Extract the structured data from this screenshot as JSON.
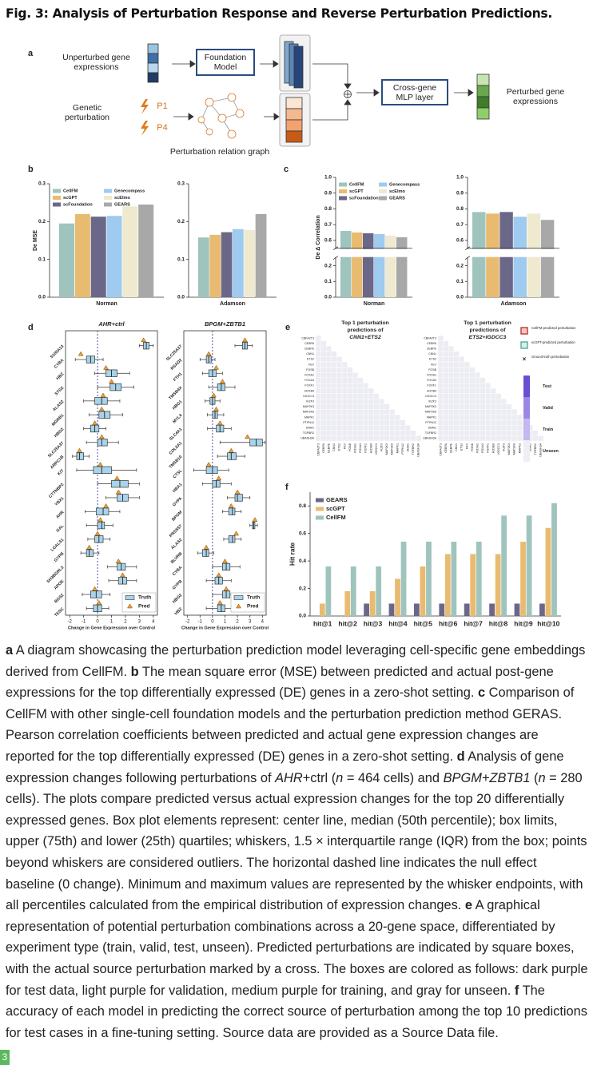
{
  "title": "Fig. 3: Analysis of Perturbation Response and Reverse Perturbation Predictions.",
  "panels": [
    "a",
    "b",
    "c",
    "d",
    "e",
    "f"
  ],
  "diagram": {
    "input": "Unperturbed gene expressions",
    "model": "Foundation Model",
    "perturbation": "Genetic perturbation",
    "p1": "P1",
    "p4": "P4",
    "graph": "Perturbation relation graph",
    "mlp": "Cross-gene MLP layer",
    "output": "Perturbed gene expressions"
  },
  "chart_data": [
    {
      "type": "bar",
      "ylabel": "De MSE",
      "categories": [
        "Norman",
        "Adamson"
      ],
      "ylim": [
        0,
        0.3
      ],
      "yticks": [
        {
          "value": 0,
          "label": "0.0"
        },
        0.1,
        0.2,
        0.3
      ],
      "series": [
        {
          "name": "CellFM",
          "color": "#9fc4bd",
          "values": [
            0.195,
            0.158
          ]
        },
        {
          "name": "scGPT",
          "color": "#e9bb70",
          "values": [
            0.22,
            0.165
          ]
        },
        {
          "name": "scFoundation",
          "color": "#6b6789",
          "values": [
            0.213,
            0.172
          ]
        },
        {
          "name": "Genecompass",
          "color": "#9ecbef",
          "values": [
            0.215,
            0.18
          ]
        },
        {
          "name": "scElmo",
          "color": "#efe9cf",
          "values": [
            0.24,
            0.178
          ]
        },
        {
          "name": "GEARS",
          "color": "#a8a8a8",
          "values": [
            0.245,
            0.22
          ]
        }
      ]
    },
    {
      "type": "bar",
      "ylabel": "De Δ Correlation",
      "categories": [
        "Norman",
        "Adamson"
      ],
      "ylim": [
        0,
        1.0
      ],
      "axis_break": [
        0.25,
        0.55
      ],
      "yticks": [
        {
          "value": 0,
          "label": "0.0"
        },
        0.1,
        0.2,
        0.6,
        0.7,
        0.8,
        0.9,
        {
          "value": 1,
          "label": "1.0"
        }
      ],
      "series": [
        {
          "name": "CellFM",
          "color": "#9fc4bd",
          "values": [
            0.66,
            0.78
          ]
        },
        {
          "name": "scGPT",
          "color": "#e9bb70",
          "values": [
            0.65,
            0.77
          ]
        },
        {
          "name": "scFoundation",
          "color": "#6b6789",
          "values": [
            0.645,
            0.78
          ]
        },
        {
          "name": "Genecompass",
          "color": "#9ecbef",
          "values": [
            0.64,
            0.75
          ]
        },
        {
          "name": "scElmo",
          "color": "#efe9cf",
          "values": [
            0.63,
            0.77
          ]
        },
        {
          "name": "GEARS",
          "color": "#a8a8a8",
          "values": [
            0.62,
            0.73
          ]
        }
      ]
    },
    {
      "type": "box",
      "title": "AHR+ctrl",
      "xlabel": "Change in Gene Expression over Control",
      "xlim": [
        -2.3,
        4.3
      ],
      "xticks": [
        -2,
        -1,
        0,
        1,
        2,
        3,
        4
      ],
      "categories": [
        "S100A13",
        "CYBA",
        "HBZ",
        "STG2",
        "ALAS2",
        "MGRB1",
        "HBG2",
        "SLC25A37",
        "ARPC1B",
        "KIT",
        "CTTNBP2",
        "YBX1",
        "AHR",
        "GAL",
        "LGALS1",
        "GYPB",
        "SH3BGRL3",
        "APOE",
        "RGS2",
        "TESC"
      ],
      "series": [
        {
          "name": "Truth",
          "color": "#a9d3ea",
          "q1": [
            3.3,
            -0.8,
            0.6,
            0.9,
            -0.2,
            0.1,
            -0.5,
            0.0,
            -1.5,
            -0.3,
            1.0,
            1.4,
            -0.1,
            0.0,
            -0.2,
            -0.8,
            1.4,
            1.5,
            -0.5,
            -0.3
          ],
          "median": [
            3.5,
            -0.5,
            1.0,
            1.3,
            0.3,
            0.5,
            -0.2,
            0.3,
            -1.3,
            0.3,
            1.6,
            1.8,
            0.4,
            0.3,
            0.1,
            -0.6,
            1.7,
            1.8,
            -0.1,
            0.0
          ],
          "q3": [
            3.7,
            -0.2,
            1.4,
            1.7,
            0.7,
            0.9,
            0.1,
            0.7,
            -1.0,
            1.0,
            2.2,
            2.2,
            0.8,
            0.5,
            0.4,
            -0.3,
            2.0,
            2.1,
            0.3,
            0.3
          ],
          "whislo": [
            3.0,
            -1.6,
            -0.2,
            0.0,
            -1.0,
            -0.6,
            -1.0,
            -0.8,
            -1.8,
            -1.5,
            0.0,
            0.6,
            -0.9,
            -0.8,
            -0.7,
            -1.2,
            0.7,
            0.8,
            -1.1,
            -0.8
          ],
          "whishi": [
            4.0,
            0.4,
            2.3,
            2.6,
            1.6,
            1.8,
            0.6,
            1.5,
            -0.6,
            2.8,
            3.0,
            3.0,
            1.6,
            1.1,
            0.9,
            0.1,
            2.8,
            2.8,
            0.9,
            0.8
          ]
        },
        {
          "name": "Pred",
          "color": "#f0a030",
          "values": [
            3.3,
            -1.2,
            0.6,
            1.0,
            0.4,
            0.3,
            -0.2,
            0.3,
            -1.3,
            0.2,
            1.4,
            1.5,
            0.6,
            0.2,
            0.0,
            -0.6,
            1.5,
            1.8,
            -0.2,
            0.1
          ]
        }
      ]
    },
    {
      "type": "box",
      "title": "BPGM+ZBTB1",
      "xlabel": "Change in Gene Expression over Control",
      "xlim": [
        -2.3,
        4.3
      ],
      "xticks": [
        -2,
        -1,
        0,
        1,
        2,
        3,
        4
      ],
      "categories": [
        "SLC25A37",
        "RSAD2",
        "FTH1",
        "TMSB4X",
        "HBG1",
        "MYL4",
        "SLC4A1",
        "COL6A1",
        "TMSB10",
        "CTSL",
        "HBA1",
        "GYPA",
        "BPGM",
        "PRSS57",
        "ALAS2",
        "BLVRB",
        "CYBA",
        "GYPB",
        "HBG2",
        "HBZ"
      ],
      "series": [
        {
          "name": "Truth",
          "color": "#a9d3ea",
          "q1": [
            2.4,
            -0.5,
            -0.3,
            0.4,
            -0.2,
            0.0,
            0.3,
            3.0,
            1.2,
            -0.5,
            0.0,
            1.8,
            1.3,
            3.2,
            1.3,
            -0.8,
            0.8,
            0.2,
            0.8,
            0.4
          ],
          "median": [
            2.6,
            -0.3,
            0.0,
            0.7,
            0.0,
            0.2,
            0.6,
            3.5,
            1.5,
            0.0,
            0.3,
            2.0,
            1.6,
            3.3,
            1.6,
            -0.5,
            1.1,
            0.5,
            1.1,
            0.7
          ],
          "q3": [
            2.8,
            -0.1,
            0.3,
            1.0,
            0.2,
            0.4,
            0.9,
            4.0,
            1.9,
            0.4,
            0.6,
            2.4,
            1.8,
            3.4,
            1.8,
            -0.3,
            1.4,
            0.8,
            1.4,
            1.0
          ],
          "whislo": [
            1.8,
            -1.0,
            -0.8,
            -0.3,
            -0.6,
            -0.4,
            -0.4,
            0.6,
            0.4,
            -1.5,
            -0.8,
            1.2,
            0.8,
            3.0,
            0.9,
            -1.2,
            0.0,
            -0.5,
            0.0,
            -0.5
          ],
          "whishi": [
            3.2,
            0.2,
            0.8,
            1.8,
            0.6,
            0.9,
            1.5,
            4.2,
            2.6,
            1.3,
            1.5,
            3.0,
            2.3,
            3.6,
            2.3,
            0.1,
            2.2,
            1.5,
            2.2,
            1.9
          ]
        },
        {
          "name": "Pred",
          "color": "#f0a030",
          "values": [
            2.6,
            -0.3,
            0.3,
            0.8,
            0.1,
            0.3,
            0.6,
            2.8,
            1.5,
            -0.3,
            0.5,
            2.0,
            1.5,
            3.4,
            1.9,
            -0.5,
            1.0,
            0.5,
            1.1,
            0.6
          ]
        }
      ]
    },
    {
      "type": "bar",
      "ylabel": "Hit rate",
      "categories": [
        "hit@1",
        "hit@2",
        "hit@3",
        "hit@4",
        "hit@5",
        "hit@6",
        "hit@7",
        "hit@8",
        "hit@9",
        "hit@10"
      ],
      "ylim": [
        0,
        0.9
      ],
      "yticks": [
        {
          "value": 0,
          "label": "0.0"
        },
        0.2,
        0.4,
        0.6,
        0.8
      ],
      "series": [
        {
          "name": "GEARS",
          "color": "#6b6789",
          "values": [
            0,
            0,
            0.09,
            0.09,
            0.09,
            0.09,
            0.09,
            0.09,
            0.09,
            0.09
          ]
        },
        {
          "name": "scGPT",
          "color": "#e9bb70",
          "values": [
            0.09,
            0.18,
            0.18,
            0.27,
            0.36,
            0.45,
            0.45,
            0.45,
            0.54,
            0.64
          ]
        },
        {
          "name": "CellFM",
          "color": "#9fc4bd",
          "values": [
            0.36,
            0.36,
            0.36,
            0.54,
            0.54,
            0.54,
            0.54,
            0.73,
            0.73,
            0.82
          ]
        }
      ]
    }
  ],
  "panel_e": {
    "titles": [
      [
        "Top 1 perturbation",
        "predictions of",
        "CNN1+ETS2"
      ],
      [
        "Top 1 perturbation",
        "predictions of",
        "ETS2+IGDCC3"
      ]
    ],
    "genes": [
      "CBFA2T3",
      "CEBPA",
      "CEBPE",
      "CNN1",
      "ETS2",
      "FEV",
      "FOSB",
      "FOXA1",
      "FOXA3",
      "FOXF1",
      "HOXB9",
      "IGDCC3",
      "IKZF3",
      "MAP2K3",
      "MAP2K6",
      "MAPK1",
      "PTPN12",
      "SNAI1",
      "TGFBR2",
      "UBASH3A"
    ],
    "markers": [
      "CellFM-predicted perturbation",
      "scGPT-predicted perturbation",
      "Ground-truth perturbation"
    ],
    "classes": [
      "Test",
      "Valid",
      "Train",
      "Unseen"
    ]
  },
  "caption": [
    "a",
    " A diagram showcasing the perturbation prediction model leveraging cell-specific gene embeddings derived from CellFM. ",
    "b",
    " The mean square error (MSE) between predicted and actual post-gene expressions for the top differentially expressed (DE) genes in a zero-shot setting. ",
    "c",
    " Comparison of CellFM with other single-cell foundation models and the perturbation prediction method GERAS. Pearson correlation coefficients between predicted and actual gene expression changes are reported for the top differentially expressed (DE) genes in a zero-shot setting. ",
    "d",
    " Analysis of gene expression changes following perturbations of ",
    "AHR",
    "+ctrl (",
    "n",
    " = 464 cells) and ",
    "BPGM+ZBTB1",
    " (",
    "n",
    " = 280 cells). The plots compare predicted versus actual expression changes for the top 20 differentially expressed genes. Box plot elements represent: center line, median (50th percentile); box limits, upper (75th) and lower (25th) quartiles; whiskers, 1.5 × interquartile range (IQR) from the box; points beyond whiskers are considered outliers. The horizontal dashed line indicates the null effect baseline (0 change). Minimum and maximum values are represented by the whisker endpoints, with all percentiles calculated from the empirical distribution of expression changes. ",
    "e",
    " A graphical representation of potential perturbation combinations across a 20-gene space, differentiated by experiment type (train, valid, test, unseen). Predicted perturbations are indicated by square boxes, with the actual source perturbation marked by a cross. The boxes are colored as follows: dark purple for test data, light purple for validation, medium purple for training, and gray for unseen. ",
    "f",
    " The accuracy of each model in predicting the correct source of perturbation among the top 10 predictions for test cases in a fine-tuning setting. Source data are provided as a Source Data file."
  ],
  "page_number": "3"
}
